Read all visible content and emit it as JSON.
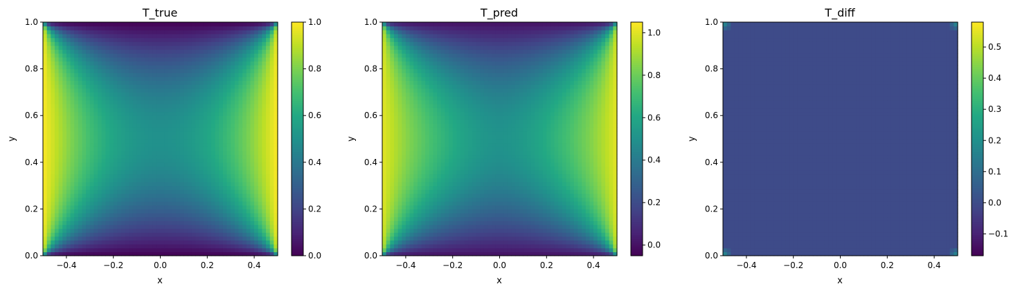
{
  "chart_data": [
    {
      "type": "heatmap",
      "title": "T_true",
      "xlabel": "x",
      "ylabel": "y",
      "xlim": [
        -0.5,
        0.5
      ],
      "ylim": [
        0.0,
        1.0
      ],
      "xticks": [
        "−0.4",
        "−0.2",
        "0.0",
        "0.2",
        "0.4"
      ],
      "yticks": [
        "0.0",
        "0.2",
        "0.4",
        "0.6",
        "0.8",
        "1.0"
      ],
      "colormap": "viridis",
      "colorbar": {
        "min": 0.0,
        "max": 1.0,
        "ticks": [
          "0.0",
          "0.2",
          "0.4",
          "0.6",
          "0.8",
          "1.0"
        ],
        "tick_values": [
          0.0,
          0.2,
          0.4,
          0.6,
          0.8,
          1.0
        ]
      },
      "field": {
        "kind": "true",
        "left_bc": 1.0,
        "right_bc": 1.0,
        "top_bc": 0.0,
        "bottom_bc": 0.0,
        "grid": [
          60,
          60
        ]
      }
    },
    {
      "type": "heatmap",
      "title": "T_pred",
      "xlabel": "x",
      "ylabel": "y",
      "xlim": [
        -0.5,
        0.5
      ],
      "ylim": [
        0.0,
        1.0
      ],
      "xticks": [
        "−0.4",
        "−0.2",
        "0.0",
        "0.2",
        "0.4"
      ],
      "yticks": [
        "0.0",
        "0.2",
        "0.4",
        "0.6",
        "0.8",
        "1.0"
      ],
      "colormap": "viridis",
      "colorbar": {
        "min": -0.05,
        "max": 1.05,
        "ticks": [
          "0.0",
          "0.2",
          "0.4",
          "0.6",
          "0.8",
          "1.0"
        ],
        "tick_values": [
          0.0,
          0.2,
          0.4,
          0.6,
          0.8,
          1.0
        ]
      },
      "field": {
        "kind": "pred",
        "left_bc": 1.0,
        "right_bc": 1.0,
        "top_bc": 0.0,
        "bottom_bc": 0.0,
        "grid": [
          60,
          60
        ]
      }
    },
    {
      "type": "heatmap",
      "title": "T_diff",
      "xlabel": "x",
      "ylabel": "y",
      "xlim": [
        -0.5,
        0.5
      ],
      "ylim": [
        0.0,
        1.0
      ],
      "xticks": [
        "−0.4",
        "−0.2",
        "0.0",
        "0.2",
        "0.4"
      ],
      "yticks": [
        "0.0",
        "0.2",
        "0.4",
        "0.6",
        "0.8",
        "1.0"
      ],
      "colormap": "viridis",
      "colorbar": {
        "min": -0.17,
        "max": 0.58,
        "ticks": [
          "−0.1",
          "0.0",
          "0.1",
          "0.2",
          "0.3",
          "0.4",
          "0.5"
        ],
        "tick_values": [
          -0.1,
          0.0,
          0.1,
          0.2,
          0.3,
          0.4,
          0.5
        ]
      },
      "field": {
        "kind": "diff",
        "background_value": 0.0,
        "grid": [
          60,
          60
        ]
      }
    }
  ]
}
